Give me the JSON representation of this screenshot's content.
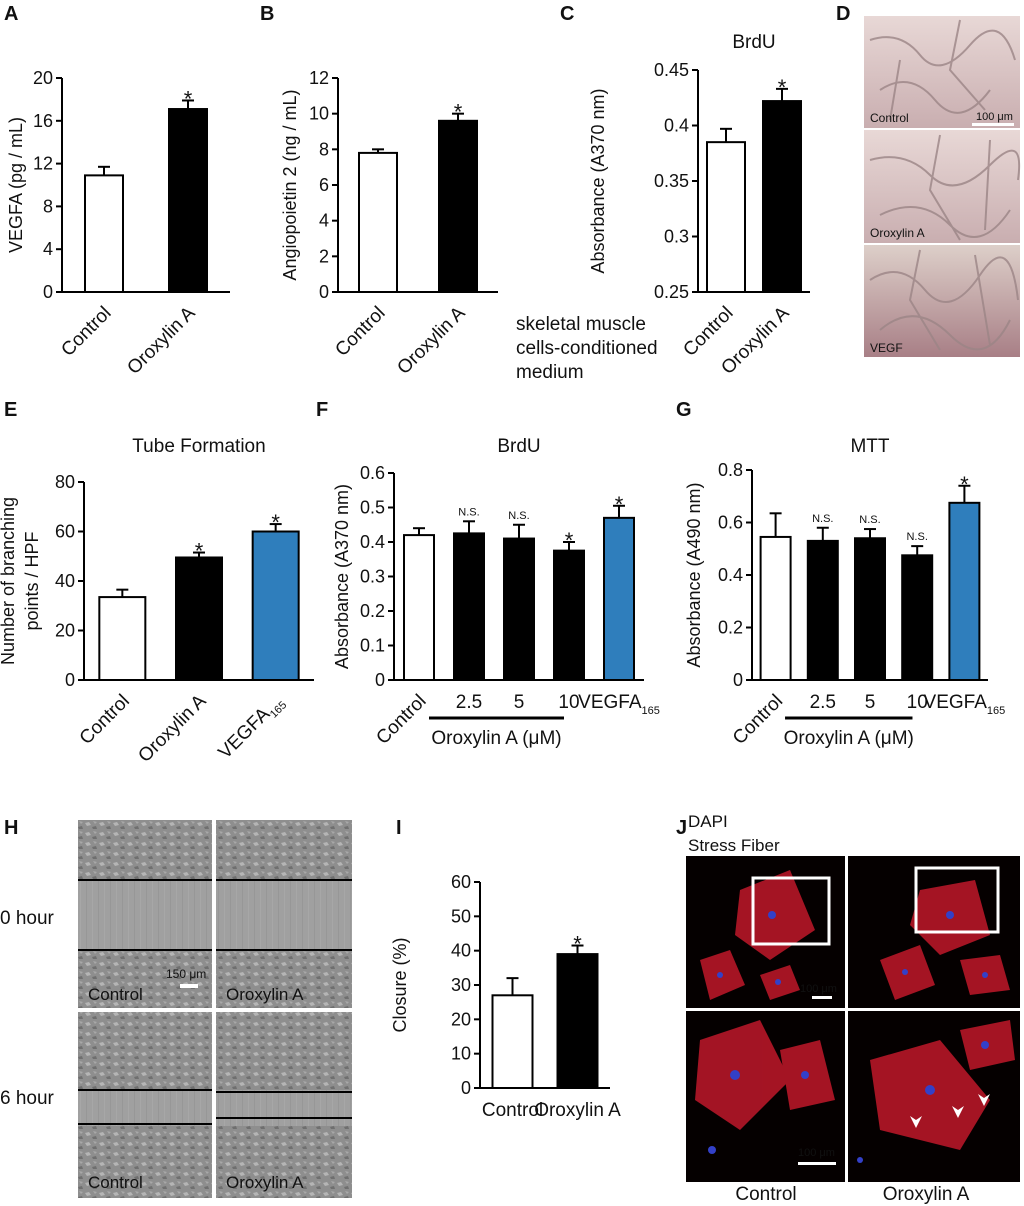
{
  "panels": {
    "A": "A",
    "B": "B",
    "C": "C",
    "D": "D",
    "E": "E",
    "F": "F",
    "G": "G",
    "H": "H",
    "I": "I",
    "J": "J"
  },
  "colors": {
    "white_bar": "#ffffff",
    "black_bar": "#000000",
    "blue_bar": "#2f7ebc"
  },
  "chart_data": [
    {
      "id": "A",
      "type": "bar",
      "title": "",
      "ylabel": "VEGFA (pg / mL)",
      "ylim": [
        0,
        20
      ],
      "yticks": [
        "0",
        "4",
        "8",
        "12",
        "16",
        "20"
      ],
      "categories": [
        "Control",
        "Oroxylin A"
      ],
      "values": [
        10.9,
        17.1
      ],
      "errors": [
        0.8,
        0.8
      ],
      "fills": [
        "white",
        "black"
      ],
      "marks": [
        "",
        "*"
      ]
    },
    {
      "id": "B",
      "type": "bar",
      "title": "",
      "ylabel": "Angiopoietin 2 (ng / mL)",
      "ylim": [
        0,
        12
      ],
      "yticks": [
        "0",
        "2",
        "4",
        "6",
        "8",
        "10",
        "12"
      ],
      "categories": [
        "Control",
        "Oroxylin A"
      ],
      "values": [
        7.8,
        9.6
      ],
      "errors": [
        0.2,
        0.4
      ],
      "fills": [
        "white",
        "black"
      ],
      "marks": [
        "",
        "*"
      ]
    },
    {
      "id": "C",
      "type": "bar",
      "title": "BrdU",
      "ylabel": "Absorbance (A370 nm)",
      "ylim": [
        0.25,
        0.45
      ],
      "yticks": [
        "0.25",
        "0.3",
        "0.35",
        "0.4",
        "0.45"
      ],
      "categories": [
        "Control",
        "Oroxylin A"
      ],
      "values": [
        0.385,
        0.422
      ],
      "errors": [
        0.012,
        0.011
      ],
      "fills": [
        "white",
        "black"
      ],
      "marks": [
        "",
        "*"
      ],
      "side_note": [
        "skeletal muscle",
        "cells-conditioned",
        "medium"
      ]
    },
    {
      "id": "E",
      "type": "bar",
      "title": "Tube Formation",
      "ylabel": [
        "Number of branching",
        "points / HPF"
      ],
      "ylim": [
        0,
        80
      ],
      "yticks": [
        "0",
        "20",
        "40",
        "60",
        "80"
      ],
      "categories": [
        "Control",
        "Oroxylin A",
        "VEGFA"
      ],
      "sub": [
        "",
        "",
        "165"
      ],
      "values": [
        33.5,
        49.5,
        60
      ],
      "errors": [
        3,
        2,
        3
      ],
      "fills": [
        "white",
        "black",
        "blue"
      ],
      "marks": [
        "",
        "*",
        "*"
      ]
    },
    {
      "id": "F",
      "type": "bar",
      "title": "BrdU",
      "ylabel": "Absorbance (A370 nm)",
      "ylim": [
        0,
        0.6
      ],
      "yticks": [
        "0",
        "0.1",
        "0.2",
        "0.3",
        "0.4",
        "0.5",
        "0.6"
      ],
      "categories": [
        "Control",
        "2.5",
        "5",
        "10",
        "VEGFA"
      ],
      "sub": [
        "",
        "",
        "",
        "",
        "165"
      ],
      "values": [
        0.42,
        0.425,
        0.41,
        0.375,
        0.47
      ],
      "errors": [
        0.02,
        0.035,
        0.04,
        0.025,
        0.035
      ],
      "fills": [
        "white",
        "black",
        "black",
        "black",
        "blue"
      ],
      "marks": [
        "",
        "N.S.",
        "N.S.",
        "*",
        "*"
      ],
      "group_label": "Oroxylin A (μM)"
    },
    {
      "id": "G",
      "type": "bar",
      "title": "MTT",
      "ylabel": "Absorbance (A490 nm)",
      "ylim": [
        0,
        0.8
      ],
      "yticks": [
        "0",
        "0.2",
        "0.4",
        "0.6",
        "0.8"
      ],
      "categories": [
        "Control",
        "2.5",
        "5",
        "10",
        "VEGFA"
      ],
      "sub": [
        "",
        "",
        "",
        "",
        "165"
      ],
      "values": [
        0.545,
        0.53,
        0.54,
        0.475,
        0.675
      ],
      "errors": [
        0.09,
        0.05,
        0.035,
        0.035,
        0.065
      ],
      "fills": [
        "white",
        "black",
        "black",
        "black",
        "blue"
      ],
      "marks": [
        "",
        "N.S.",
        "N.S.",
        "N.S.",
        "*"
      ],
      "group_label": "Oroxylin A (μM)"
    },
    {
      "id": "I",
      "type": "bar",
      "title": "",
      "ylabel": "Closure (%)",
      "ylim": [
        0,
        60
      ],
      "yticks": [
        "0",
        "10",
        "20",
        "30",
        "40",
        "50",
        "60"
      ],
      "categories": [
        "Control",
        "Oroxylin A"
      ],
      "values": [
        27,
        39
      ],
      "errors": [
        5,
        2.5
      ],
      "fills": [
        "white",
        "black"
      ],
      "marks": [
        "",
        "*"
      ]
    }
  ],
  "micrographs": {
    "D": {
      "labels": [
        "Control",
        "Oroxylin A",
        "VEGF"
      ],
      "scale": "100 μm"
    },
    "H": {
      "rows": [
        "0 hour",
        "6 hour"
      ],
      "col_labels": [
        "Control",
        "Oroxylin A"
      ],
      "scale": "150 μm"
    },
    "J": {
      "legend": [
        "DAPI",
        "Stress Fiber"
      ],
      "scale_top": "100 μm",
      "scale_bottom": "100 μm",
      "col_labels": [
        "Control",
        "Oroxylin A"
      ]
    }
  }
}
